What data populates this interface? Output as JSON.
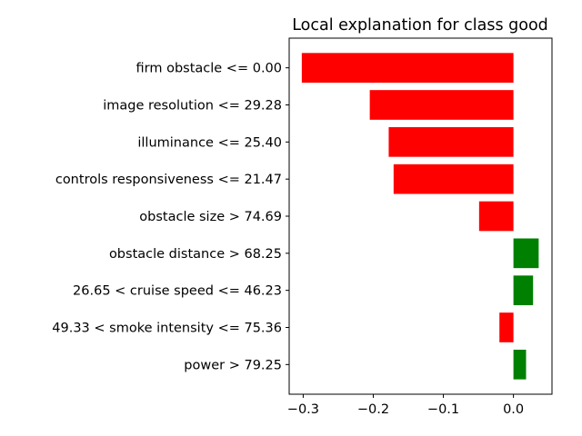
{
  "chart_data": {
    "type": "bar",
    "orientation": "horizontal",
    "title": "Local explanation for class good",
    "xlabel": "",
    "ylabel": "",
    "xlim": [
      -0.32,
      0.055
    ],
    "grid": false,
    "positive_color": "#008000",
    "negative_color": "#ff0000",
    "x_ticks": [
      {
        "value": -0.3,
        "label": "−0.3"
      },
      {
        "value": -0.2,
        "label": "−0.2"
      },
      {
        "value": -0.1,
        "label": "−0.1"
      },
      {
        "value": 0.0,
        "label": "0.0"
      }
    ],
    "categories": [
      "firm obstacle <= 0.00",
      "image resolution <= 29.28",
      "illuminance <= 25.40",
      "controls responsiveness <= 21.47",
      "obstacle size > 74.69",
      "obstacle distance > 68.25",
      "26.65 < cruise speed <= 46.23",
      "49.33 < smoke intensity <= 75.36",
      "power > 79.25"
    ],
    "values": [
      -0.302,
      -0.205,
      -0.178,
      -0.171,
      -0.049,
      0.036,
      0.028,
      -0.02,
      0.018
    ]
  }
}
